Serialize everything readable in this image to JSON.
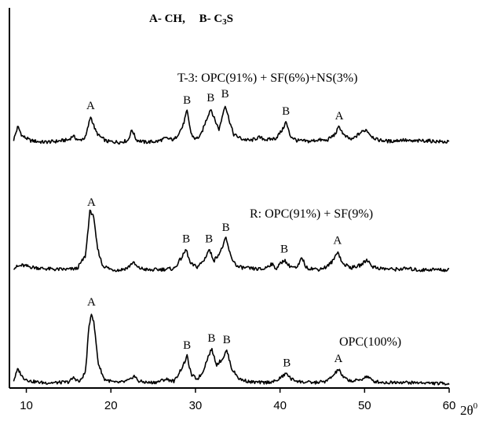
{
  "chart_data": {
    "type": "line",
    "legend_text": {
      "a": "A-  CH,",
      "b_prefix": "B- C",
      "b_sub": "3",
      "b_suffix": "S"
    },
    "x_axis": {
      "range": [
        8,
        60
      ],
      "ticks": [
        10,
        20,
        30,
        40,
        50,
        60
      ],
      "label_base": "2θ",
      "label_sup": "0"
    },
    "y_axis": {
      "ticks_shown": false
    },
    "grid": false,
    "series": [
      {
        "name": "T-3:  OPC(91%) + SF(6%)+NS(3%)",
        "baseline": 0.0,
        "points": [
          [
            8.5,
            0.05
          ],
          [
            9.0,
            0.22
          ],
          [
            9.5,
            0.1
          ],
          [
            10.5,
            0.04
          ],
          [
            12,
            0.02
          ],
          [
            13.5,
            0.03
          ],
          [
            15,
            0.05
          ],
          [
            15.5,
            0.1
          ],
          [
            16.2,
            0.04
          ],
          [
            17,
            0.08
          ],
          [
            17.6,
            0.35
          ],
          [
            18.2,
            0.16
          ],
          [
            18.6,
            0.1
          ],
          [
            19.5,
            0.03
          ],
          [
            21,
            0.02
          ],
          [
            22,
            0.04
          ],
          [
            22.5,
            0.18
          ],
          [
            23,
            0.05
          ],
          [
            24,
            0.02
          ],
          [
            25.5,
            0.03
          ],
          [
            26.5,
            0.07
          ],
          [
            27.5,
            0.05
          ],
          [
            28.5,
            0.22
          ],
          [
            29.0,
            0.42
          ],
          [
            29.5,
            0.12
          ],
          [
            30,
            0.06
          ],
          [
            30.6,
            0.1
          ],
          [
            31.2,
            0.28
          ],
          [
            31.8,
            0.45
          ],
          [
            32.3,
            0.3
          ],
          [
            32.8,
            0.18
          ],
          [
            33.5,
            0.5
          ],
          [
            34.0,
            0.3
          ],
          [
            34.5,
            0.12
          ],
          [
            35.5,
            0.06
          ],
          [
            36.5,
            0.04
          ],
          [
            37.5,
            0.08
          ],
          [
            38.5,
            0.05
          ],
          [
            39.5,
            0.07
          ],
          [
            40.3,
            0.18
          ],
          [
            40.7,
            0.28
          ],
          [
            41.2,
            0.1
          ],
          [
            42,
            0.04
          ],
          [
            43.5,
            0.03
          ],
          [
            44.5,
            0.05
          ],
          [
            45.5,
            0.04
          ],
          [
            46.5,
            0.12
          ],
          [
            47,
            0.22
          ],
          [
            47.6,
            0.1
          ],
          [
            48.5,
            0.05
          ],
          [
            49.5,
            0.14
          ],
          [
            50.2,
            0.18
          ],
          [
            50.8,
            0.1
          ],
          [
            51.5,
            0.05
          ],
          [
            53,
            0.03
          ],
          [
            54.5,
            0.05
          ],
          [
            55.5,
            0.03
          ],
          [
            57,
            0.04
          ],
          [
            58.5,
            0.03
          ],
          [
            60,
            0.02
          ]
        ]
      },
      {
        "name": "R:  OPC(91%) + SF(9%)",
        "baseline": 0.0,
        "points": [
          [
            8.5,
            0.05
          ],
          [
            9.5,
            0.08
          ],
          [
            10.5,
            0.06
          ],
          [
            12,
            0.04
          ],
          [
            13.5,
            0.03
          ],
          [
            15,
            0.03
          ],
          [
            16,
            0.04
          ],
          [
            17.0,
            0.2
          ],
          [
            17.5,
            0.75
          ],
          [
            17.9,
            0.72
          ],
          [
            18.4,
            0.3
          ],
          [
            19,
            0.08
          ],
          [
            20,
            0.03
          ],
          [
            21,
            0.02
          ],
          [
            22,
            0.05
          ],
          [
            22.6,
            0.12
          ],
          [
            23.2,
            0.05
          ],
          [
            24.5,
            0.02
          ],
          [
            26,
            0.03
          ],
          [
            27.5,
            0.04
          ],
          [
            28.5,
            0.2
          ],
          [
            28.9,
            0.28
          ],
          [
            29.4,
            0.1
          ],
          [
            30.2,
            0.06
          ],
          [
            31,
            0.14
          ],
          [
            31.6,
            0.28
          ],
          [
            32.2,
            0.14
          ],
          [
            33,
            0.26
          ],
          [
            33.6,
            0.42
          ],
          [
            34.2,
            0.18
          ],
          [
            35,
            0.06
          ],
          [
            36.5,
            0.04
          ],
          [
            38,
            0.03
          ],
          [
            39,
            0.1
          ],
          [
            39.5,
            0.04
          ],
          [
            40.5,
            0.15
          ],
          [
            41,
            0.08
          ],
          [
            42,
            0.04
          ],
          [
            42.6,
            0.18
          ],
          [
            43.1,
            0.05
          ],
          [
            44.5,
            0.03
          ],
          [
            45.5,
            0.06
          ],
          [
            46.3,
            0.14
          ],
          [
            46.8,
            0.26
          ],
          [
            47.4,
            0.1
          ],
          [
            48.5,
            0.05
          ],
          [
            49.5,
            0.08
          ],
          [
            50.3,
            0.15
          ],
          [
            51,
            0.06
          ],
          [
            52,
            0.04
          ],
          [
            53.5,
            0.03
          ],
          [
            55,
            0.04
          ],
          [
            56.5,
            0.02
          ],
          [
            58,
            0.03
          ],
          [
            60,
            0.02
          ]
        ]
      },
      {
        "name": "OPC(100%)",
        "baseline": 0.0,
        "points": [
          [
            8.5,
            0.06
          ],
          [
            9.0,
            0.22
          ],
          [
            9.6,
            0.1
          ],
          [
            10.5,
            0.05
          ],
          [
            12,
            0.03
          ],
          [
            13.5,
            0.03
          ],
          [
            15,
            0.04
          ],
          [
            15.6,
            0.1
          ],
          [
            16.3,
            0.04
          ],
          [
            17.0,
            0.18
          ],
          [
            17.4,
            0.8
          ],
          [
            17.7,
            1.0
          ],
          [
            18.0,
            0.85
          ],
          [
            18.5,
            0.3
          ],
          [
            19.2,
            0.08
          ],
          [
            20.5,
            0.03
          ],
          [
            21.5,
            0.04
          ],
          [
            22.3,
            0.07
          ],
          [
            22.7,
            0.13
          ],
          [
            23.3,
            0.05
          ],
          [
            24.5,
            0.03
          ],
          [
            25.5,
            0.04
          ],
          [
            26.5,
            0.08
          ],
          [
            27.5,
            0.05
          ],
          [
            28.6,
            0.28
          ],
          [
            29.0,
            0.4
          ],
          [
            29.5,
            0.14
          ],
          [
            30.2,
            0.08
          ],
          [
            30.8,
            0.16
          ],
          [
            31.4,
            0.36
          ],
          [
            31.9,
            0.5
          ],
          [
            32.5,
            0.28
          ],
          [
            33.2,
            0.36
          ],
          [
            33.7,
            0.48
          ],
          [
            34.3,
            0.22
          ],
          [
            35.2,
            0.08
          ],
          [
            36.5,
            0.04
          ],
          [
            38,
            0.03
          ],
          [
            39.5,
            0.05
          ],
          [
            40.3,
            0.12
          ],
          [
            40.8,
            0.16
          ],
          [
            41.3,
            0.08
          ],
          [
            42.5,
            0.04
          ],
          [
            44,
            0.03
          ],
          [
            45.5,
            0.05
          ],
          [
            46.4,
            0.14
          ],
          [
            46.9,
            0.22
          ],
          [
            47.5,
            0.1
          ],
          [
            48.5,
            0.05
          ],
          [
            49.5,
            0.07
          ],
          [
            50.3,
            0.12
          ],
          [
            51,
            0.05
          ],
          [
            52.5,
            0.03
          ],
          [
            54,
            0.04
          ],
          [
            55.5,
            0.03
          ],
          [
            57,
            0.03
          ],
          [
            58.5,
            0.02
          ],
          [
            60,
            0.02
          ]
        ]
      }
    ],
    "annotations": [
      {
        "series": 0,
        "x": 17.6,
        "label": "A"
      },
      {
        "series": 0,
        "x": 29.0,
        "label": "B"
      },
      {
        "series": 0,
        "x": 31.8,
        "label": "B"
      },
      {
        "series": 0,
        "x": 33.5,
        "label": "B"
      },
      {
        "series": 0,
        "x": 40.7,
        "label": "B"
      },
      {
        "series": 0,
        "x": 47.0,
        "label": "A"
      },
      {
        "series": 1,
        "x": 17.7,
        "label": "A"
      },
      {
        "series": 1,
        "x": 28.9,
        "label": "B"
      },
      {
        "series": 1,
        "x": 31.6,
        "label": "B"
      },
      {
        "series": 1,
        "x": 33.6,
        "label": "B"
      },
      {
        "series": 1,
        "x": 40.5,
        "label": "B"
      },
      {
        "series": 1,
        "x": 46.8,
        "label": "A"
      },
      {
        "series": 2,
        "x": 17.7,
        "label": "A"
      },
      {
        "series": 2,
        "x": 29.0,
        "label": "B"
      },
      {
        "series": 2,
        "x": 31.9,
        "label": "B"
      },
      {
        "series": 2,
        "x": 33.7,
        "label": "B"
      },
      {
        "series": 2,
        "x": 40.8,
        "label": "B"
      },
      {
        "series": 2,
        "x": 46.9,
        "label": "A"
      }
    ]
  }
}
